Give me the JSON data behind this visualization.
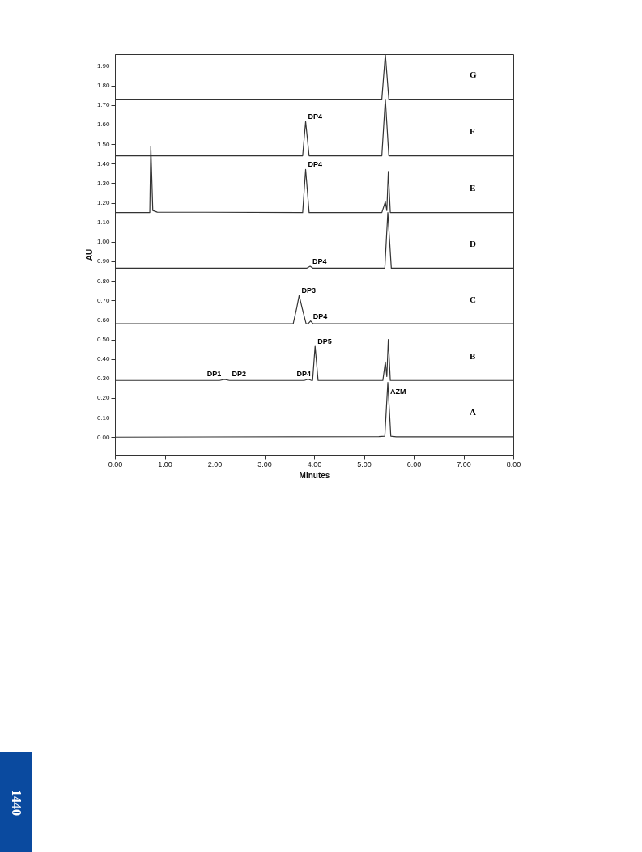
{
  "chart_data": {
    "type": "line",
    "xlabel": "Minutes",
    "ylabel": "AU",
    "xlim": [
      0,
      8
    ],
    "ylim": [
      -0.09,
      1.96
    ],
    "xticks": [
      {
        "value": 0,
        "label": "0.00"
      },
      {
        "value": 1,
        "label": "1.00"
      },
      {
        "value": 2,
        "label": "2.00"
      },
      {
        "value": 3,
        "label": "3.00"
      },
      {
        "value": 4,
        "label": "4.00"
      },
      {
        "value": 5,
        "label": "5.00"
      },
      {
        "value": 6,
        "label": "6.00"
      },
      {
        "value": 7,
        "label": "7.00"
      },
      {
        "value": 8,
        "label": "8.00"
      }
    ],
    "yticks": [
      {
        "value": 0,
        "label": "0.00"
      },
      {
        "value": 0.1,
        "label": "0.10"
      },
      {
        "value": 0.2,
        "label": "0.20"
      },
      {
        "value": 0.3,
        "label": "0.30"
      },
      {
        "value": 0.4,
        "label": "0.40"
      },
      {
        "value": 0.5,
        "label": "0.50"
      },
      {
        "value": 0.6,
        "label": "0.60"
      },
      {
        "value": 0.7,
        "label": "0.70"
      },
      {
        "value": 0.8,
        "label": "0.80"
      },
      {
        "value": 0.9,
        "label": "0.90"
      },
      {
        "value": 1,
        "label": "1.00"
      },
      {
        "value": 1.1,
        "label": "1.10"
      },
      {
        "value": 1.2,
        "label": "1.20"
      },
      {
        "value": 1.3,
        "label": "1.30"
      },
      {
        "value": 1.4,
        "label": "1.40"
      },
      {
        "value": 1.5,
        "label": "1.50"
      },
      {
        "value": 1.6,
        "label": "1.60"
      },
      {
        "value": 1.7,
        "label": "1.70"
      },
      {
        "value": 1.8,
        "label": "1.80"
      },
      {
        "value": 1.9,
        "label": "1.90"
      }
    ],
    "grid": false,
    "legend": false,
    "marker": "none",
    "line_style": "solid",
    "series": [
      {
        "name": "A",
        "color": "#333333",
        "x": [
          0,
          5.3,
          5.42,
          5.48,
          5.54,
          5.65,
          8
        ],
        "values": [
          0,
          0.003,
          0.005,
          0.28,
          0.005,
          0.002,
          0.002
        ]
      },
      {
        "name": "B",
        "color": "#333333",
        "x": [
          0,
          2.1,
          2.2,
          2.3,
          3.8,
          3.88,
          3.95,
          3.97,
          4.02,
          4.08,
          4.15,
          5.38,
          5.43,
          5.46,
          5.49,
          5.53,
          5.6,
          8
        ],
        "values": [
          0.29,
          0.29,
          0.296,
          0.29,
          0.29,
          0.296,
          0.29,
          0.29,
          0.465,
          0.29,
          0.29,
          0.29,
          0.385,
          0.31,
          0.5,
          0.29,
          0.29,
          0.29
        ]
      },
      {
        "name": "C",
        "color": "#333333",
        "x": [
          0,
          3.58,
          3.65,
          3.7,
          3.76,
          3.84,
          3.88,
          3.93,
          3.98,
          8
        ],
        "values": [
          0.58,
          0.58,
          0.66,
          0.725,
          0.66,
          0.58,
          0.58,
          0.595,
          0.58,
          0.58
        ]
      },
      {
        "name": "D",
        "color": "#333333",
        "x": [
          0,
          3.85,
          3.92,
          3.98,
          5.42,
          5.48,
          5.55,
          8
        ],
        "values": [
          0.865,
          0.865,
          0.875,
          0.865,
          0.865,
          1.15,
          0.865,
          0.865
        ]
      },
      {
        "name": "E",
        "color": "#333333",
        "x": [
          0,
          0.7,
          0.72,
          0.76,
          0.85,
          3.77,
          3.83,
          3.9,
          5.36,
          5.43,
          5.46,
          5.49,
          5.53,
          8
        ],
        "values": [
          1.15,
          1.15,
          1.49,
          1.16,
          1.152,
          1.15,
          1.37,
          1.15,
          1.15,
          1.205,
          1.16,
          1.36,
          1.15,
          1.15
        ]
      },
      {
        "name": "F",
        "color": "#333333",
        "x": [
          0,
          3.77,
          3.83,
          3.9,
          5.36,
          5.43,
          5.5,
          8
        ],
        "values": [
          1.44,
          1.44,
          1.615,
          1.44,
          1.44,
          1.73,
          1.44,
          1.44
        ]
      },
      {
        "name": "G",
        "color": "#333333",
        "x": [
          0,
          5.36,
          5.43,
          5.5,
          8
        ],
        "values": [
          1.73,
          1.73,
          1.96,
          1.73,
          1.73
        ]
      }
    ],
    "annotations": [
      {
        "text": "AZM",
        "x": 5.48,
        "y": 0.21
      },
      {
        "text": "DP1",
        "x": 1.8,
        "y": 0.3
      },
      {
        "text": "DP2",
        "x": 2.3,
        "y": 0.3
      },
      {
        "text": "DP4",
        "x": 3.6,
        "y": 0.3
      },
      {
        "text": "DP5",
        "x": 4.02,
        "y": 0.465
      },
      {
        "text": "DP3",
        "x": 3.7,
        "y": 0.725
      },
      {
        "text": "DP4",
        "x": 3.93,
        "y": 0.595
      },
      {
        "text": "DP4",
        "x": 3.92,
        "y": 0.875
      },
      {
        "text": "DP4",
        "x": 3.83,
        "y": 1.37
      },
      {
        "text": "DP4",
        "x": 3.83,
        "y": 1.615
      },
      "1440"
    ]
  }
}
